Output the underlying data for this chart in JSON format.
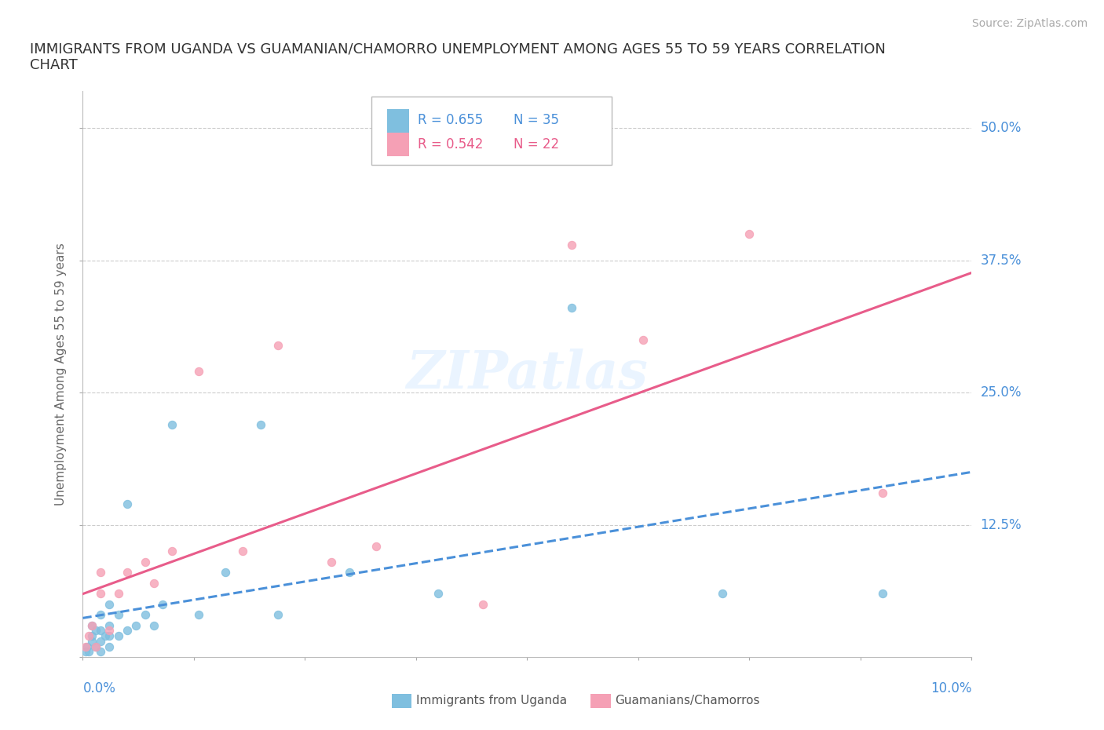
{
  "title": "IMMIGRANTS FROM UGANDA VS GUAMANIAN/CHAMORRO UNEMPLOYMENT AMONG AGES 55 TO 59 YEARS CORRELATION\nCHART",
  "source": "Source: ZipAtlas.com",
  "ylabel": "Unemployment Among Ages 55 to 59 years",
  "xrange": [
    0.0,
    0.1
  ],
  "yrange": [
    0.0,
    0.535
  ],
  "color_blue": "#7fbfdf",
  "color_blue_line": "#4a90d9",
  "color_pink": "#f5a0b5",
  "color_pink_line": "#e85c8a",
  "color_blue_text": "#4a90d9",
  "color_pink_text": "#e85c8a",
  "background_color": "#ffffff",
  "grid_color": "#cccccc",
  "watermark": "ZIPatlas",
  "uganda_x": [
    0.0003,
    0.0005,
    0.0007,
    0.001,
    0.001,
    0.001,
    0.0015,
    0.0015,
    0.002,
    0.002,
    0.002,
    0.002,
    0.0025,
    0.003,
    0.003,
    0.003,
    0.003,
    0.004,
    0.004,
    0.005,
    0.005,
    0.006,
    0.007,
    0.008,
    0.009,
    0.01,
    0.013,
    0.016,
    0.02,
    0.022,
    0.03,
    0.04,
    0.055,
    0.072,
    0.09
  ],
  "uganda_y": [
    0.005,
    0.01,
    0.005,
    0.015,
    0.02,
    0.03,
    0.01,
    0.025,
    0.005,
    0.015,
    0.025,
    0.04,
    0.02,
    0.01,
    0.02,
    0.03,
    0.05,
    0.02,
    0.04,
    0.025,
    0.145,
    0.03,
    0.04,
    0.03,
    0.05,
    0.22,
    0.04,
    0.08,
    0.22,
    0.04,
    0.08,
    0.06,
    0.33,
    0.06,
    0.06
  ],
  "guam_x": [
    0.0003,
    0.0007,
    0.001,
    0.0015,
    0.002,
    0.002,
    0.003,
    0.004,
    0.005,
    0.007,
    0.008,
    0.01,
    0.013,
    0.018,
    0.022,
    0.028,
    0.033,
    0.045,
    0.055,
    0.063,
    0.075,
    0.09
  ],
  "guam_y": [
    0.01,
    0.02,
    0.03,
    0.01,
    0.06,
    0.08,
    0.025,
    0.06,
    0.08,
    0.09,
    0.07,
    0.1,
    0.27,
    0.1,
    0.295,
    0.09,
    0.105,
    0.05,
    0.39,
    0.3,
    0.4,
    0.155
  ],
  "ytick_values": [
    0.0,
    0.125,
    0.25,
    0.375,
    0.5
  ],
  "ytick_labels": [
    "",
    "12.5%",
    "25.0%",
    "37.5%",
    "50.0%"
  ],
  "legend_r1": "R = 0.655",
  "legend_n1": "N = 35",
  "legend_r2": "R = 0.542",
  "legend_n2": "N = 22"
}
